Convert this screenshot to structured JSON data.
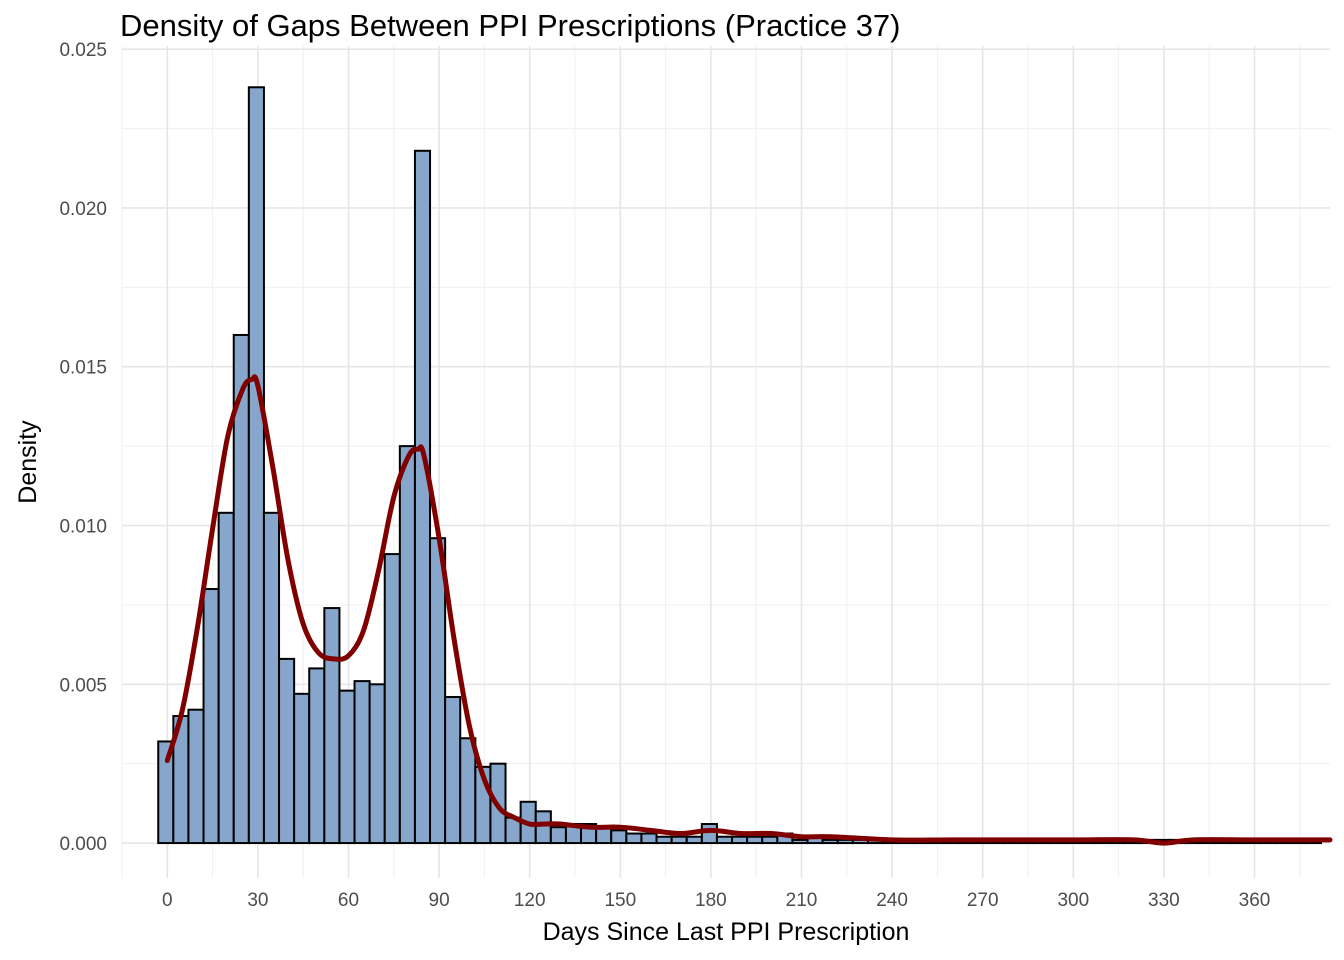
{
  "chart_data": {
    "type": "bar",
    "title": "Density of Gaps Between PPI Prescriptions (Practice 37)",
    "xlabel": "Days Since Last PPI Prescription",
    "ylabel": "Density",
    "xlim": [
      -15,
      385
    ],
    "ylim": [
      -0.0011,
      0.0251
    ],
    "x_ticks": [
      0,
      30,
      60,
      90,
      120,
      150,
      180,
      210,
      240,
      270,
      300,
      330,
      360
    ],
    "y_ticks": [
      0.0,
      0.005,
      0.01,
      0.015,
      0.02,
      0.025
    ],
    "y_tick_labels": [
      "0.000",
      "0.005",
      "0.010",
      "0.015",
      "0.020",
      "0.025"
    ],
    "grid": true,
    "histogram": {
      "bin_width": 5,
      "bin_starts": [
        -3,
        2,
        7,
        12,
        17,
        22,
        27,
        32,
        37,
        42,
        47,
        52,
        57,
        62,
        67,
        72,
        77,
        82,
        87,
        92,
        97,
        102,
        107,
        112,
        117,
        122,
        127,
        132,
        137,
        142,
        147,
        152,
        157,
        162,
        167,
        172,
        177,
        182,
        187,
        192,
        197,
        202,
        207,
        212,
        217,
        222,
        227,
        232,
        237,
        242,
        247,
        252,
        257,
        262,
        267,
        272,
        277,
        282,
        287,
        292,
        297,
        302,
        307,
        312,
        317,
        322,
        327,
        332,
        337,
        342,
        347,
        352,
        357,
        362,
        367,
        372,
        377
      ],
      "densities": [
        0.0032,
        0.004,
        0.0042,
        0.008,
        0.0104,
        0.016,
        0.0238,
        0.0104,
        0.0058,
        0.0047,
        0.0055,
        0.0074,
        0.0048,
        0.0051,
        0.005,
        0.0091,
        0.0125,
        0.0218,
        0.0096,
        0.0046,
        0.0033,
        0.0024,
        0.0025,
        0.0008,
        0.0013,
        0.001,
        0.0005,
        0.0006,
        0.0006,
        0.0005,
        0.0004,
        0.0003,
        0.0003,
        0.0002,
        0.0002,
        0.0002,
        0.0006,
        0.0002,
        0.0002,
        0.0002,
        0.0002,
        0.0003,
        0.0001,
        0.0002,
        0.0001,
        0.0001,
        0.0001,
        0.0001,
        0.0001,
        0.0001,
        0.0001,
        0.0001,
        0.0001,
        0.0001,
        0.0001,
        0.0001,
        0.0001,
        0.0001,
        0.0001,
        0.0001,
        0.0001,
        0.0001,
        0.0001,
        0.0001,
        0.0001,
        0.0001,
        0.0001,
        0.0001,
        0.0001,
        0.0001,
        0.0001,
        0.0001,
        0.0001,
        0.0001,
        0.0001,
        0.0001,
        0.0001
      ],
      "fill_color": "#86A7CB",
      "edge_color": "#000000"
    },
    "density_curve": {
      "x": [
        0,
        5,
        10,
        15,
        20,
        25,
        28,
        30,
        35,
        40,
        45,
        50,
        55,
        60,
        65,
        70,
        75,
        80,
        83,
        85,
        90,
        95,
        100,
        105,
        110,
        115,
        120,
        125,
        130,
        140,
        150,
        160,
        170,
        180,
        190,
        200,
        210,
        220,
        240,
        260,
        280,
        300,
        320,
        330,
        340,
        360,
        385
      ],
      "y": [
        0.0026,
        0.0042,
        0.0068,
        0.0099,
        0.0128,
        0.0143,
        0.0146,
        0.0144,
        0.0118,
        0.0089,
        0.0069,
        0.006,
        0.0058,
        0.0059,
        0.0067,
        0.0086,
        0.0109,
        0.0122,
        0.0124,
        0.0122,
        0.0096,
        0.0064,
        0.0037,
        0.002,
        0.0011,
        0.0008,
        0.0006,
        0.0006,
        0.0006,
        0.0005,
        0.0005,
        0.0004,
        0.0003,
        0.0004,
        0.0003,
        0.0003,
        0.0002,
        0.0002,
        0.0001,
        0.0001,
        0.0001,
        0.0001,
        0.0001,
        0.0,
        0.0001,
        0.0001,
        0.0001
      ],
      "color": "#800000"
    }
  }
}
